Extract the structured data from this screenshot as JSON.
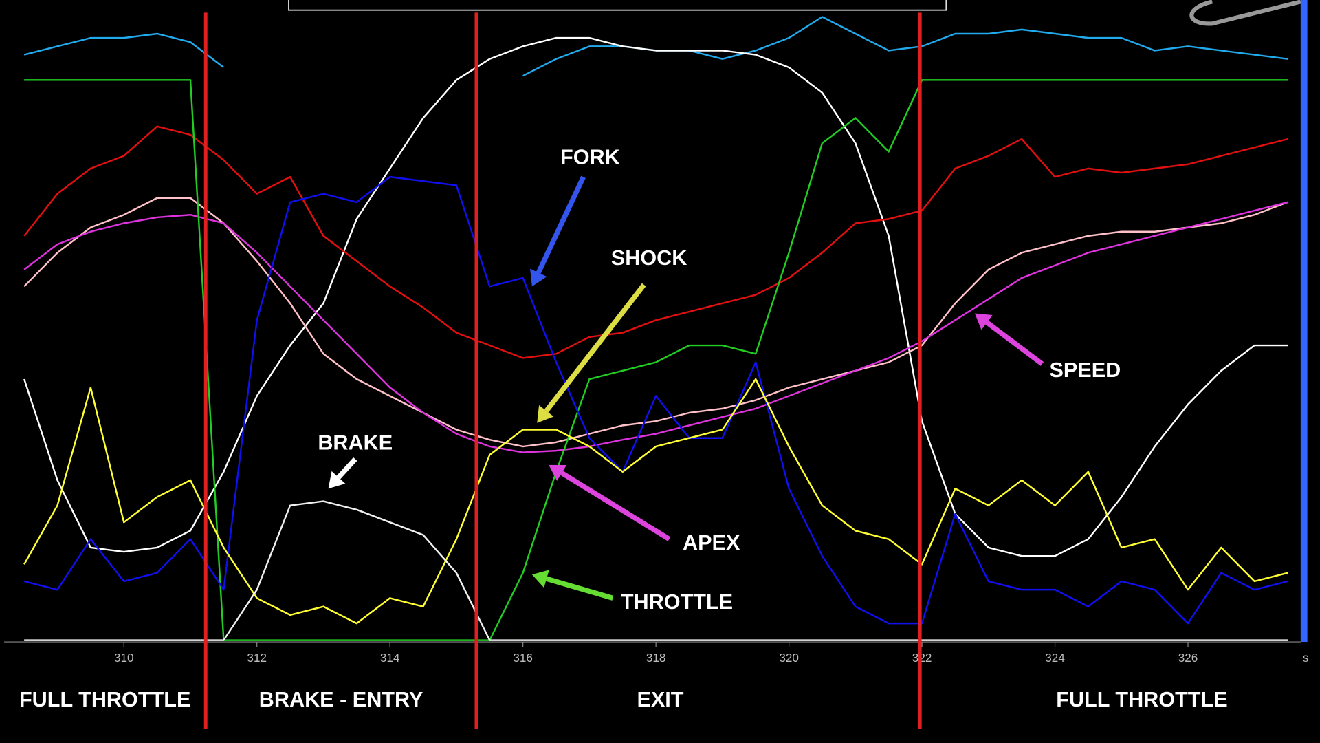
{
  "chart_data": {
    "type": "line",
    "x": [
      308.5,
      309,
      309.5,
      310,
      310.5,
      311,
      311.5,
      312,
      312.5,
      313,
      313.5,
      314,
      314.5,
      315,
      315.5,
      316,
      316.5,
      317,
      317.5,
      318,
      318.5,
      319,
      319.5,
      320,
      320.5,
      321,
      321.5,
      322,
      322.5,
      323,
      323.5,
      324,
      324.5,
      325,
      325.5,
      326,
      326.5,
      327,
      327.5
    ],
    "xlim": [
      308.2,
      327.63
    ],
    "xticks": [
      310,
      312,
      314,
      316,
      318,
      320,
      322,
      324,
      326
    ],
    "x_unit": "s",
    "ylim": [
      0,
      76
    ],
    "series": [
      {
        "color": "#22aaee",
        "values": [
          69.5,
          70.5,
          71.5,
          71.5,
          72,
          71,
          68,
          null,
          null,
          null,
          null,
          null,
          null,
          null,
          null,
          67,
          69,
          70.5,
          70.5,
          70,
          70,
          69,
          70,
          71.5,
          74,
          72,
          70,
          70.5,
          72,
          72,
          72.5,
          72,
          71.5,
          71.5,
          70,
          70.5,
          70,
          69.5,
          69
        ]
      },
      {
        "color": "#ffffff",
        "values": [
          31,
          19,
          11,
          10.5,
          11,
          13,
          20,
          29,
          35,
          40,
          50,
          56,
          62,
          66.5,
          69,
          70.5,
          71.5,
          71.5,
          70.5,
          70,
          70,
          70,
          69.5,
          68,
          65,
          59,
          48,
          26,
          15,
          11,
          10,
          10,
          12,
          17,
          23,
          28,
          32,
          35,
          35
        ]
      },
      {
        "color": "#e01010",
        "values": [
          48,
          53,
          56,
          57.5,
          61,
          60,
          57,
          53,
          55,
          48,
          45,
          42,
          39.5,
          36.5,
          35,
          33.5,
          34,
          36,
          36.5,
          38,
          39,
          40,
          41,
          43,
          46,
          49.5,
          50,
          51,
          56,
          57.5,
          59.5,
          55,
          56,
          55.5,
          56,
          56.5,
          57.5,
          58.5,
          59.5
        ]
      },
      {
        "color": "#ffc0c8",
        "values": [
          42,
          46,
          49,
          50.5,
          52.5,
          52.5,
          49.5,
          45,
          40,
          34,
          31,
          29,
          27,
          25,
          23.8,
          23,
          23.5,
          24.5,
          25.5,
          26,
          27,
          27.5,
          28.5,
          30,
          31,
          32,
          33,
          35,
          40,
          44,
          46,
          47,
          48,
          48.5,
          48.5,
          49,
          49.5,
          50.5,
          52
        ]
      },
      {
        "color": "#dd33dd",
        "values": [
          44,
          47,
          48.5,
          49.5,
          50.2,
          50.5,
          49.5,
          46,
          42,
          38,
          34,
          30,
          27,
          24.5,
          23,
          22.3,
          22.5,
          23,
          23.8,
          24.5,
          25.5,
          26.5,
          27.5,
          29,
          30.5,
          32,
          33.5,
          35.5,
          38,
          40.5,
          43,
          44.5,
          46,
          47,
          48,
          49,
          50,
          51,
          52
        ]
      },
      {
        "color": "#22cc22",
        "values": [
          66.5,
          66.5,
          66.5,
          66.5,
          66.5,
          66.5,
          0,
          0,
          0,
          0,
          0,
          0,
          0,
          0,
          0,
          8,
          20,
          31,
          32,
          33,
          35,
          35,
          34,
          46,
          59,
          62,
          58,
          66.5,
          66.5,
          66.5,
          66.5,
          66.5,
          66.5,
          66.5,
          66.5,
          66.5,
          66.5,
          66.5,
          66.5
        ]
      },
      {
        "color": "#1010ee",
        "values": [
          7,
          6,
          12,
          7,
          8,
          12,
          6,
          38,
          52,
          53,
          52,
          55,
          54.5,
          54,
          42,
          43,
          33,
          24,
          20,
          29,
          24,
          24,
          33,
          18,
          10,
          4,
          2,
          2,
          15,
          7,
          6,
          6,
          4,
          7,
          6,
          2,
          8,
          6,
          7
        ]
      },
      {
        "color": "#ffff33",
        "values": [
          9,
          16,
          30,
          14,
          17,
          19,
          11,
          5,
          3,
          4,
          2,
          5,
          4,
          12,
          22,
          25,
          25,
          23,
          20,
          23,
          24,
          25,
          31,
          23,
          16,
          13,
          12,
          9,
          18,
          16,
          19,
          16,
          20,
          11,
          12,
          6,
          11,
          7,
          8
        ]
      },
      {
        "color": "#f0f0f0",
        "values": [
          0,
          0,
          0,
          0,
          0,
          0,
          0,
          6,
          16,
          16.5,
          15.5,
          14,
          12.5,
          8,
          0,
          0,
          0,
          0,
          0,
          0,
          0,
          0,
          0,
          0,
          0,
          0,
          0,
          0,
          0,
          0,
          0,
          0,
          0,
          0,
          0,
          0,
          0,
          0,
          0
        ]
      }
    ],
    "section_lines": [
      311.23,
      315.3,
      321.97
    ],
    "section_line_color": "#e02020",
    "sections": [
      "FULL THROTTLE",
      "BRAKE - ENTRY",
      "EXIT",
      "FULL THROTTLE"
    ],
    "annotations": [
      "FORK",
      "SHOCK",
      "BRAKE",
      "APEX",
      "THROTTLE",
      "SPEED"
    ]
  }
}
